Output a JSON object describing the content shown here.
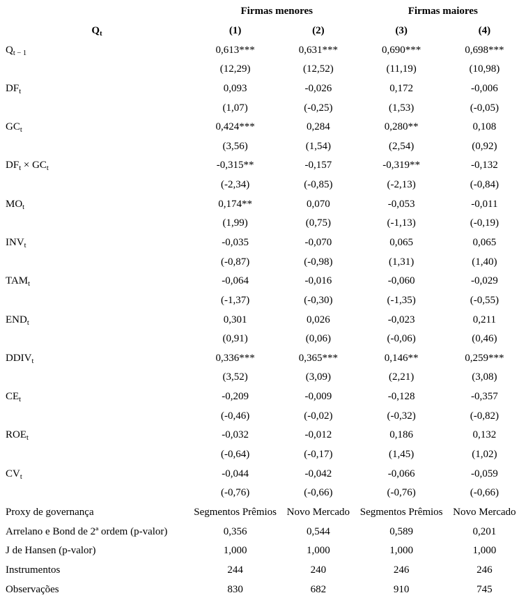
{
  "table": {
    "group_headers": [
      "Firmas menores",
      "Firmas maiores"
    ],
    "corner_label": {
      "base": "Q",
      "sub": "t"
    },
    "column_headers": [
      "(1)",
      "(2)",
      "(3)",
      "(4)"
    ],
    "variables": [
      {
        "label": [
          {
            "t": "Q"
          },
          {
            "sub": "t − 1"
          }
        ],
        "coefs": [
          "0,613***",
          "0,631***",
          "0,690***",
          "0,698***"
        ],
        "tstats": [
          "(12,29)",
          "(12,52)",
          "(11,19)",
          "(10,98)"
        ]
      },
      {
        "label": [
          {
            "t": "DF"
          },
          {
            "sub": "t"
          }
        ],
        "coefs": [
          "0,093",
          "-0,026",
          "0,172",
          "-0,006"
        ],
        "tstats": [
          "(1,07)",
          "(-0,25)",
          "(1,53)",
          "(-0,05)"
        ]
      },
      {
        "label": [
          {
            "t": "GC"
          },
          {
            "sub": "t"
          }
        ],
        "coefs": [
          "0,424***",
          "0,284",
          "0,280**",
          "0,108"
        ],
        "tstats": [
          "(3,56)",
          "(1,54)",
          "(2,54)",
          "(0,92)"
        ]
      },
      {
        "label": [
          {
            "t": "DF"
          },
          {
            "sub": "t"
          },
          {
            "t": " × "
          },
          {
            "t": "GC"
          },
          {
            "sub": "t"
          }
        ],
        "coefs": [
          "-0,315**",
          "-0,157",
          "-0,319**",
          "-0,132"
        ],
        "tstats": [
          "(-2,34)",
          "(-0,85)",
          "(-2,13)",
          "(-0,84)"
        ]
      },
      {
        "label": [
          {
            "t": "MO"
          },
          {
            "sub": "t"
          }
        ],
        "coefs": [
          "0,174**",
          "0,070",
          "-0,053",
          "-0,011"
        ],
        "tstats": [
          "(1,99)",
          "(0,75)",
          "(-1,13)",
          "(-0,19)"
        ]
      },
      {
        "label": [
          {
            "t": "INV"
          },
          {
            "sub": "t"
          }
        ],
        "coefs": [
          "-0,035",
          "-0,070",
          "0,065",
          "0,065"
        ],
        "tstats": [
          "(-0,87)",
          "(-0,98)",
          "(1,31)",
          "(1,40)"
        ]
      },
      {
        "label": [
          {
            "t": "TAM"
          },
          {
            "sub": "t"
          }
        ],
        "coefs": [
          "-0,064",
          "-0,016",
          "-0,060",
          "-0,029"
        ],
        "tstats": [
          "(-1,37)",
          "(-0,30)",
          "(-1,35)",
          "(-0,55)"
        ]
      },
      {
        "label": [
          {
            "t": "END"
          },
          {
            "sub": "t"
          }
        ],
        "coefs": [
          "0,301",
          "0,026",
          "-0,023",
          "0,211"
        ],
        "tstats": [
          "(0,91)",
          "(0,06)",
          "(-0,06)",
          "(0,46)"
        ]
      },
      {
        "label": [
          {
            "t": "DDIV"
          },
          {
            "sub": "t"
          }
        ],
        "coefs": [
          "0,336***",
          "0,365***",
          "0,146**",
          "0,259***"
        ],
        "tstats": [
          "(3,52)",
          "(3,09)",
          "(2,21)",
          "(3,08)"
        ]
      },
      {
        "label": [
          {
            "t": "CE"
          },
          {
            "sub": "t"
          }
        ],
        "coefs": [
          "-0,209",
          "-0,009",
          "-0,128",
          "-0,357"
        ],
        "tstats": [
          "(-0,46)",
          "(-0,02)",
          "(-0,32)",
          "(-0,82)"
        ]
      },
      {
        "label": [
          {
            "t": "ROE"
          },
          {
            "sub": "t"
          }
        ],
        "coefs": [
          "-0,032",
          "-0,012",
          "0,186",
          "0,132"
        ],
        "tstats": [
          "(-0,64)",
          "(-0,17)",
          "(1,45)",
          "(1,02)"
        ]
      },
      {
        "label": [
          {
            "t": "CV"
          },
          {
            "sub": "t"
          }
        ],
        "coefs": [
          "-0,044",
          "-0,042",
          "-0,066",
          "-0,059"
        ],
        "tstats": [
          "(-0,76)",
          "(-0,66)",
          "(-0,76)",
          "(-0,66)"
        ]
      }
    ],
    "summary_rows": [
      {
        "label": "Proxy de governança",
        "values": [
          "Segmentos Prêmios",
          "Novo Mercado",
          "Segmentos Prêmios",
          "Novo Mercado"
        ]
      },
      {
        "label": "Arrelano e Bond de 2ª ordem (p-valor)",
        "values": [
          "0,356",
          "0,544",
          "0,589",
          "0,201"
        ]
      },
      {
        "label": "J de Hansen (p-valor)",
        "values": [
          "1,000",
          "1,000",
          "1,000",
          "1,000"
        ]
      },
      {
        "label": "Instrumentos",
        "values": [
          "244",
          "240",
          "246",
          "246"
        ]
      },
      {
        "label": "Observações",
        "values": [
          "830",
          "682",
          "910",
          "745"
        ]
      }
    ]
  }
}
